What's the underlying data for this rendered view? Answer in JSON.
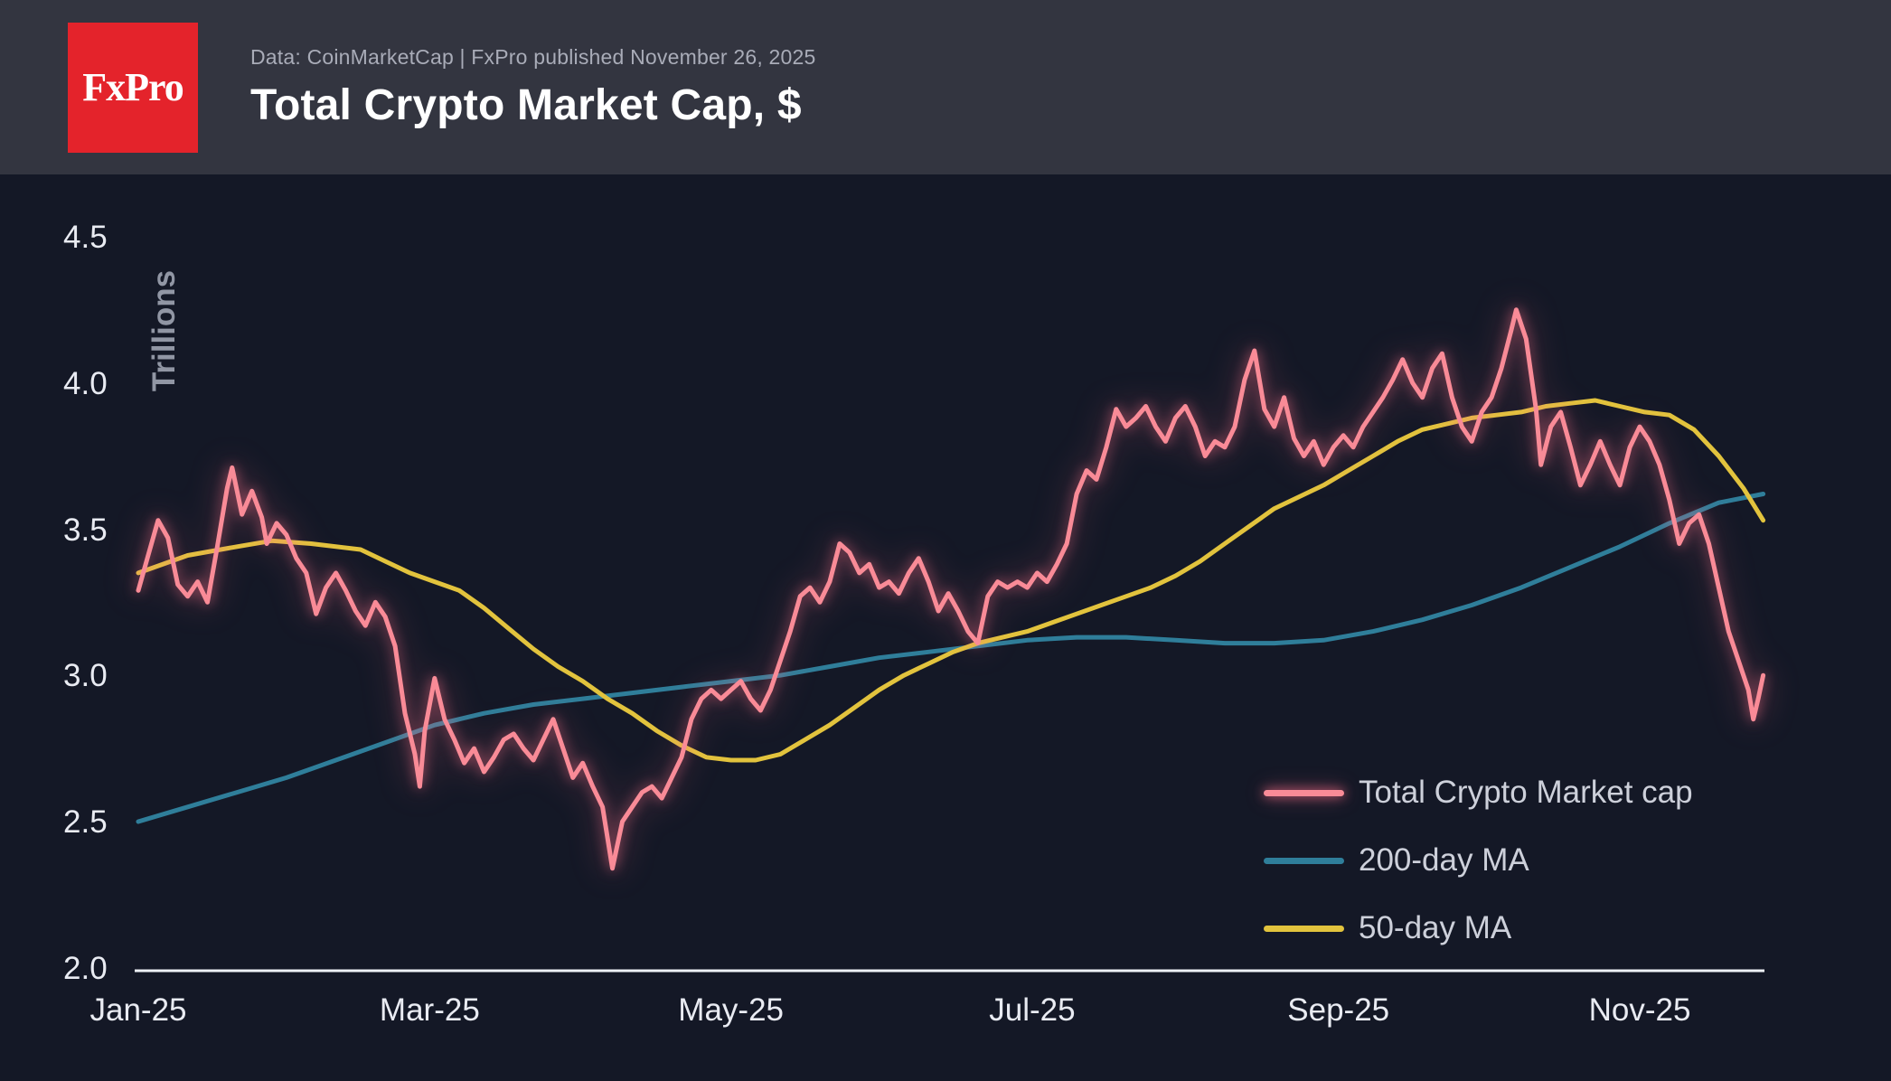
{
  "header": {
    "logo_text": "FxPro",
    "source_line": "Data: CoinMarketCap | FxPro published November 26, 2025",
    "title": "Total Crypto Market Cap, $"
  },
  "theme": {
    "header_bg": "#333540",
    "chart_bg": "#141826",
    "logo_bg": "#e4232b",
    "title_color": "#ffffff",
    "subtitle_color": "#a9acb8",
    "tick_color": "#e9ebf2",
    "ylabel_color": "#9196a4",
    "legend_text_color": "#cdd0da",
    "axis_line_color": "#eef1f6"
  },
  "chart_data": {
    "type": "line",
    "title": "Total Crypto Market Cap, $",
    "xlabel": "",
    "ylabel": "Trillions",
    "x_unit": "days since 2025-01-01",
    "xlim": [
      0,
      329
    ],
    "ylim": [
      2.0,
      4.5
    ],
    "grid": false,
    "legend_position": "bottom-right",
    "x_ticks": [
      {
        "day": 0,
        "label": "Jan-25"
      },
      {
        "day": 59,
        "label": "Mar-25"
      },
      {
        "day": 120,
        "label": "May-25"
      },
      {
        "day": 181,
        "label": "Jul-25"
      },
      {
        "day": 243,
        "label": "Sep-25"
      },
      {
        "day": 304,
        "label": "Nov-25"
      }
    ],
    "y_ticks": [
      {
        "value": 4.5,
        "label": "4.5"
      },
      {
        "value": 4.0,
        "label": "4.0"
      },
      {
        "value": 3.5,
        "label": "3.5"
      },
      {
        "value": 3.0,
        "label": "3.0"
      },
      {
        "value": 2.5,
        "label": "2.5"
      },
      {
        "value": 2.0,
        "label": "2.0"
      }
    ],
    "series": [
      {
        "name": "Total Crypto Market cap",
        "color": "#f98b97",
        "glow": true,
        "stroke_width": 5,
        "points": [
          [
            0,
            3.3
          ],
          [
            2,
            3.42
          ],
          [
            4,
            3.54
          ],
          [
            6,
            3.48
          ],
          [
            8,
            3.32
          ],
          [
            10,
            3.28
          ],
          [
            12,
            3.33
          ],
          [
            14,
            3.26
          ],
          [
            16,
            3.45
          ],
          [
            18,
            3.65
          ],
          [
            19,
            3.72
          ],
          [
            21,
            3.56
          ],
          [
            23,
            3.64
          ],
          [
            25,
            3.55
          ],
          [
            26,
            3.46
          ],
          [
            28,
            3.53
          ],
          [
            30,
            3.49
          ],
          [
            32,
            3.41
          ],
          [
            34,
            3.36
          ],
          [
            36,
            3.22
          ],
          [
            38,
            3.31
          ],
          [
            40,
            3.36
          ],
          [
            42,
            3.3
          ],
          [
            44,
            3.23
          ],
          [
            46,
            3.18
          ],
          [
            48,
            3.26
          ],
          [
            50,
            3.21
          ],
          [
            52,
            3.11
          ],
          [
            54,
            2.88
          ],
          [
            56,
            2.74
          ],
          [
            57,
            2.63
          ],
          [
            58,
            2.82
          ],
          [
            60,
            3.0
          ],
          [
            62,
            2.86
          ],
          [
            64,
            2.79
          ],
          [
            66,
            2.71
          ],
          [
            68,
            2.76
          ],
          [
            70,
            2.68
          ],
          [
            72,
            2.73
          ],
          [
            74,
            2.79
          ],
          [
            76,
            2.81
          ],
          [
            78,
            2.76
          ],
          [
            80,
            2.72
          ],
          [
            82,
            2.79
          ],
          [
            84,
            2.86
          ],
          [
            86,
            2.76
          ],
          [
            88,
            2.66
          ],
          [
            90,
            2.71
          ],
          [
            92,
            2.63
          ],
          [
            94,
            2.56
          ],
          [
            96,
            2.35
          ],
          [
            98,
            2.51
          ],
          [
            100,
            2.56
          ],
          [
            102,
            2.61
          ],
          [
            104,
            2.63
          ],
          [
            106,
            2.59
          ],
          [
            108,
            2.66
          ],
          [
            110,
            2.73
          ],
          [
            112,
            2.86
          ],
          [
            114,
            2.93
          ],
          [
            116,
            2.96
          ],
          [
            118,
            2.93
          ],
          [
            120,
            2.96
          ],
          [
            122,
            2.99
          ],
          [
            124,
            2.93
          ],
          [
            126,
            2.89
          ],
          [
            128,
            2.96
          ],
          [
            130,
            3.06
          ],
          [
            132,
            3.16
          ],
          [
            134,
            3.28
          ],
          [
            136,
            3.31
          ],
          [
            138,
            3.26
          ],
          [
            140,
            3.33
          ],
          [
            142,
            3.46
          ],
          [
            144,
            3.43
          ],
          [
            146,
            3.36
          ],
          [
            148,
            3.39
          ],
          [
            150,
            3.31
          ],
          [
            152,
            3.33
          ],
          [
            154,
            3.29
          ],
          [
            156,
            3.36
          ],
          [
            158,
            3.41
          ],
          [
            160,
            3.33
          ],
          [
            162,
            3.23
          ],
          [
            164,
            3.29
          ],
          [
            166,
            3.23
          ],
          [
            168,
            3.16
          ],
          [
            170,
            3.12
          ],
          [
            172,
            3.28
          ],
          [
            174,
            3.33
          ],
          [
            176,
            3.31
          ],
          [
            178,
            3.33
          ],
          [
            180,
            3.31
          ],
          [
            182,
            3.36
          ],
          [
            184,
            3.33
          ],
          [
            186,
            3.39
          ],
          [
            188,
            3.46
          ],
          [
            190,
            3.63
          ],
          [
            192,
            3.71
          ],
          [
            194,
            3.68
          ],
          [
            196,
            3.79
          ],
          [
            198,
            3.92
          ],
          [
            200,
            3.86
          ],
          [
            202,
            3.89
          ],
          [
            204,
            3.93
          ],
          [
            206,
            3.86
          ],
          [
            208,
            3.81
          ],
          [
            210,
            3.89
          ],
          [
            212,
            3.93
          ],
          [
            214,
            3.86
          ],
          [
            216,
            3.76
          ],
          [
            218,
            3.81
          ],
          [
            220,
            3.79
          ],
          [
            222,
            3.86
          ],
          [
            224,
            4.02
          ],
          [
            226,
            4.12
          ],
          [
            228,
            3.92
          ],
          [
            230,
            3.86
          ],
          [
            232,
            3.96
          ],
          [
            234,
            3.82
          ],
          [
            236,
            3.76
          ],
          [
            238,
            3.81
          ],
          [
            240,
            3.73
          ],
          [
            242,
            3.79
          ],
          [
            244,
            3.83
          ],
          [
            246,
            3.79
          ],
          [
            248,
            3.86
          ],
          [
            250,
            3.91
          ],
          [
            252,
            3.96
          ],
          [
            254,
            4.02
          ],
          [
            256,
            4.09
          ],
          [
            258,
            4.01
          ],
          [
            260,
            3.96
          ],
          [
            262,
            4.06
          ],
          [
            264,
            4.11
          ],
          [
            266,
            3.96
          ],
          [
            268,
            3.86
          ],
          [
            270,
            3.81
          ],
          [
            272,
            3.91
          ],
          [
            274,
            3.96
          ],
          [
            276,
            4.06
          ],
          [
            278,
            4.19
          ],
          [
            279,
            4.26
          ],
          [
            281,
            4.16
          ],
          [
            283,
            3.92
          ],
          [
            284,
            3.73
          ],
          [
            286,
            3.86
          ],
          [
            288,
            3.91
          ],
          [
            290,
            3.79
          ],
          [
            292,
            3.66
          ],
          [
            294,
            3.73
          ],
          [
            296,
            3.81
          ],
          [
            298,
            3.73
          ],
          [
            300,
            3.66
          ],
          [
            302,
            3.79
          ],
          [
            304,
            3.86
          ],
          [
            306,
            3.81
          ],
          [
            308,
            3.73
          ],
          [
            310,
            3.61
          ],
          [
            312,
            3.46
          ],
          [
            314,
            3.53
          ],
          [
            316,
            3.56
          ],
          [
            318,
            3.46
          ],
          [
            320,
            3.31
          ],
          [
            322,
            3.16
          ],
          [
            324,
            3.06
          ],
          [
            326,
            2.96
          ],
          [
            327,
            2.86
          ],
          [
            328,
            2.93
          ],
          [
            329,
            3.01
          ]
        ]
      },
      {
        "name": "200-day MA",
        "color": "#2f7e9a",
        "glow": false,
        "stroke_width": 5,
        "points": [
          [
            0,
            2.51
          ],
          [
            10,
            2.56
          ],
          [
            20,
            2.61
          ],
          [
            30,
            2.66
          ],
          [
            40,
            2.72
          ],
          [
            50,
            2.78
          ],
          [
            60,
            2.84
          ],
          [
            70,
            2.88
          ],
          [
            80,
            2.91
          ],
          [
            90,
            2.93
          ],
          [
            100,
            2.95
          ],
          [
            110,
            2.97
          ],
          [
            120,
            2.99
          ],
          [
            130,
            3.01
          ],
          [
            140,
            3.04
          ],
          [
            150,
            3.07
          ],
          [
            160,
            3.09
          ],
          [
            170,
            3.11
          ],
          [
            180,
            3.13
          ],
          [
            190,
            3.14
          ],
          [
            200,
            3.14
          ],
          [
            210,
            3.13
          ],
          [
            220,
            3.12
          ],
          [
            230,
            3.12
          ],
          [
            240,
            3.13
          ],
          [
            250,
            3.16
          ],
          [
            260,
            3.2
          ],
          [
            270,
            3.25
          ],
          [
            280,
            3.31
          ],
          [
            290,
            3.38
          ],
          [
            300,
            3.45
          ],
          [
            310,
            3.53
          ],
          [
            320,
            3.6
          ],
          [
            329,
            3.63
          ]
        ]
      },
      {
        "name": "50-day MA",
        "color": "#e2c33d",
        "glow": false,
        "stroke_width": 5,
        "points": [
          [
            0,
            3.36
          ],
          [
            10,
            3.42
          ],
          [
            20,
            3.45
          ],
          [
            27,
            3.47
          ],
          [
            35,
            3.46
          ],
          [
            45,
            3.44
          ],
          [
            50,
            3.4
          ],
          [
            55,
            3.36
          ],
          [
            60,
            3.33
          ],
          [
            65,
            3.3
          ],
          [
            70,
            3.24
          ],
          [
            75,
            3.17
          ],
          [
            80,
            3.1
          ],
          [
            85,
            3.04
          ],
          [
            90,
            2.99
          ],
          [
            95,
            2.93
          ],
          [
            100,
            2.88
          ],
          [
            105,
            2.82
          ],
          [
            110,
            2.77
          ],
          [
            115,
            2.73
          ],
          [
            120,
            2.72
          ],
          [
            125,
            2.72
          ],
          [
            130,
            2.74
          ],
          [
            135,
            2.79
          ],
          [
            140,
            2.84
          ],
          [
            145,
            2.9
          ],
          [
            150,
            2.96
          ],
          [
            155,
            3.01
          ],
          [
            160,
            3.05
          ],
          [
            165,
            3.09
          ],
          [
            170,
            3.12
          ],
          [
            175,
            3.14
          ],
          [
            180,
            3.16
          ],
          [
            185,
            3.19
          ],
          [
            190,
            3.22
          ],
          [
            195,
            3.25
          ],
          [
            200,
            3.28
          ],
          [
            205,
            3.31
          ],
          [
            210,
            3.35
          ],
          [
            215,
            3.4
          ],
          [
            220,
            3.46
          ],
          [
            225,
            3.52
          ],
          [
            230,
            3.58
          ],
          [
            235,
            3.62
          ],
          [
            240,
            3.66
          ],
          [
            245,
            3.71
          ],
          [
            250,
            3.76
          ],
          [
            255,
            3.81
          ],
          [
            260,
            3.85
          ],
          [
            265,
            3.87
          ],
          [
            270,
            3.89
          ],
          [
            275,
            3.9
          ],
          [
            280,
            3.91
          ],
          [
            285,
            3.93
          ],
          [
            290,
            3.94
          ],
          [
            295,
            3.95
          ],
          [
            300,
            3.93
          ],
          [
            305,
            3.91
          ],
          [
            310,
            3.9
          ],
          [
            315,
            3.85
          ],
          [
            320,
            3.76
          ],
          [
            325,
            3.65
          ],
          [
            329,
            3.54
          ]
        ]
      }
    ]
  }
}
